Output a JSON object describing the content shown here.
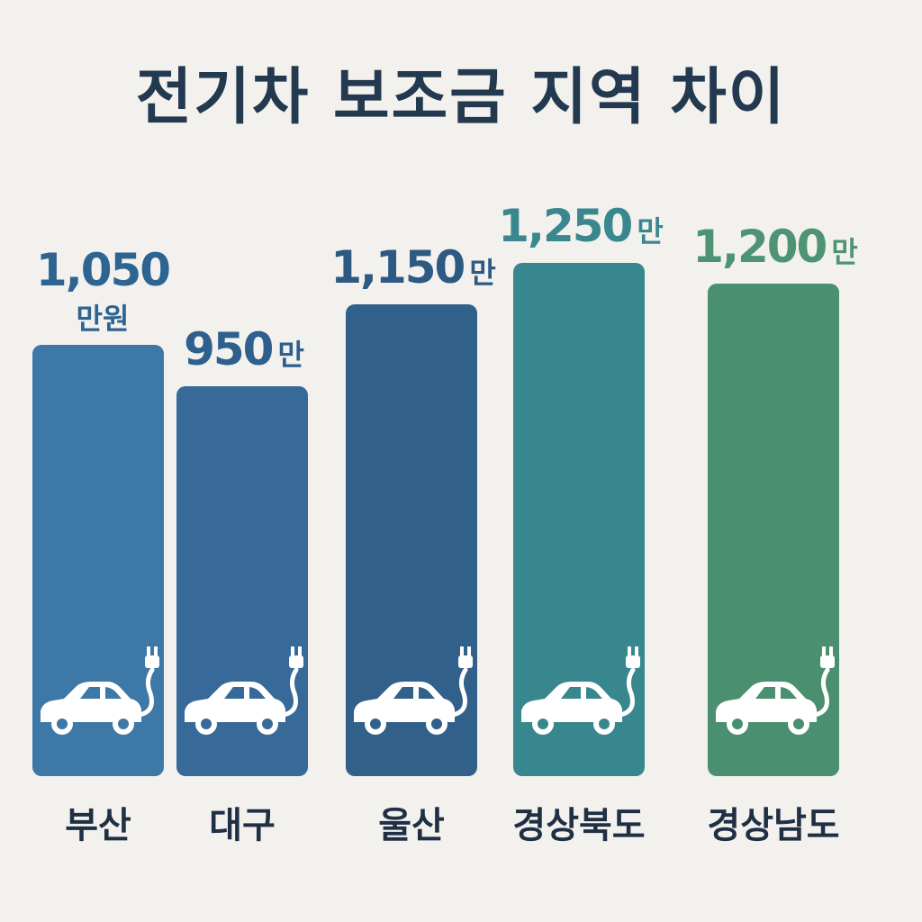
{
  "chart_data": {
    "type": "bar",
    "title": "전기차 보조금 지역 차이",
    "categories": [
      "부산",
      "대구",
      "울산",
      "경상북도",
      "경상남도"
    ],
    "values": [
      1050,
      950,
      1150,
      1250,
      1200
    ],
    "value_labels": [
      "1,050",
      "950",
      "1,150",
      "1,250",
      "1,200"
    ],
    "value_units": [
      "만원",
      "만",
      "만",
      "만",
      "만"
    ],
    "bar_colors": [
      "#3d78a6",
      "#376a98",
      "#31608a",
      "#38878f",
      "#4a8f6f"
    ],
    "label_colors": [
      "#2e6491",
      "#2e5f8d",
      "#2d5a83",
      "#3a8790",
      "#4e9474"
    ],
    "icon": "electric-car-plug-icon",
    "xlabel": "",
    "ylabel": ""
  }
}
